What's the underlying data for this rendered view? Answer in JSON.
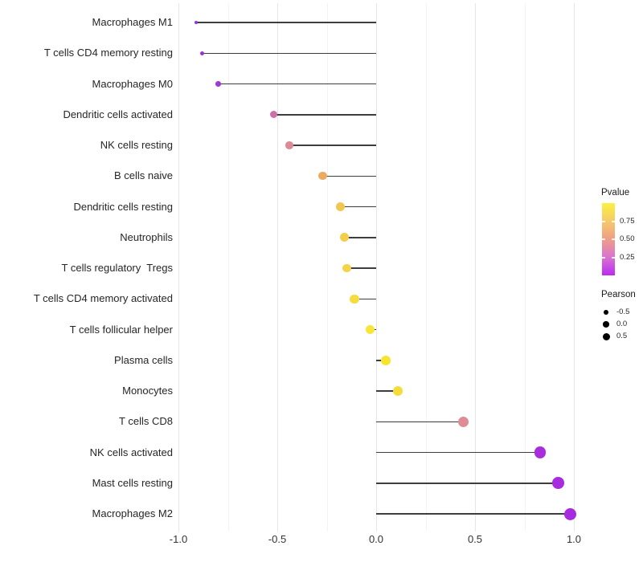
{
  "chart_data": {
    "type": "scatter",
    "subtype": "lollipop",
    "title": "",
    "xlabel": "",
    "ylabel": "",
    "grid": true,
    "xlim": [
      -1.05,
      1.08
    ],
    "x_ticks": [
      {
        "label": "-1.0",
        "value": -1.0
      },
      {
        "label": "-0.5",
        "value": -0.5
      },
      {
        "label": "0.0",
        "value": 0.0
      },
      {
        "label": "0.5",
        "value": 0.5
      },
      {
        "label": "1.0",
        "value": 1.0
      }
    ],
    "minor_grid_values": [
      -0.75,
      -0.25,
      0.25,
      0.75
    ],
    "points": [
      {
        "label": "Macrophages M1",
        "pearson": -0.91,
        "pvalue": 0.07,
        "color": "#9b32cc"
      },
      {
        "label": "T cells CD4 memory resting",
        "pearson": -0.88,
        "pvalue": 0.08,
        "color": "#9d33ce"
      },
      {
        "label": "Macrophages M0",
        "pearson": -0.8,
        "pvalue": 0.1,
        "color": "#a137d4"
      },
      {
        "label": "Dendritic cells activated",
        "pearson": -0.52,
        "pvalue": 0.33,
        "color": "#ce6fac"
      },
      {
        "label": "NK cells resting",
        "pearson": -0.44,
        "pvalue": 0.45,
        "color": "#dc8a93"
      },
      {
        "label": "B cells naive",
        "pearson": -0.27,
        "pvalue": 0.63,
        "color": "#eda95e"
      },
      {
        "label": "Dendritic cells resting",
        "pearson": -0.18,
        "pvalue": 0.73,
        "color": "#f2c750"
      },
      {
        "label": "Neutrophils",
        "pearson": -0.16,
        "pvalue": 0.76,
        "color": "#f3ce4b"
      },
      {
        "label": "T cells regulatory  Tregs",
        "pearson": -0.15,
        "pvalue": 0.78,
        "color": "#f4d346"
      },
      {
        "label": "T cells CD4 memory activated",
        "pearson": -0.11,
        "pvalue": 0.82,
        "color": "#f6dc3e"
      },
      {
        "label": "T cells follicular helper",
        "pearson": -0.03,
        "pvalue": 0.88,
        "color": "#f8e636"
      },
      {
        "label": "Plasma cells",
        "pearson": 0.05,
        "pvalue": 0.9,
        "color": "#f7e42f"
      },
      {
        "label": "Monocytes",
        "pearson": 0.11,
        "pvalue": 0.85,
        "color": "#f4dd39"
      },
      {
        "label": "T cells CD8",
        "pearson": 0.44,
        "pvalue": 0.46,
        "color": "#de8d97"
      },
      {
        "label": "NK cells activated",
        "pearson": 0.83,
        "pvalue": 0.05,
        "color": "#a82edc"
      },
      {
        "label": "Mast cells resting",
        "pearson": 0.92,
        "pvalue": 0.04,
        "color": "#a72cde"
      },
      {
        "label": "Macrophages M2",
        "pearson": 0.98,
        "pvalue": 0.03,
        "color": "#a62bdf"
      }
    ],
    "legend": {
      "pvalue": {
        "title": "Pvalue",
        "range": [
          0,
          1
        ],
        "ticks": [
          {
            "label": "0.75",
            "value": 0.75
          },
          {
            "label": "0.50",
            "value": 0.5
          },
          {
            "label": "0.25",
            "value": 0.25
          }
        ],
        "gradient_top_to_bottom": [
          "#fbf13f",
          "#f6c96b",
          "#ef9e87",
          "#d973d0",
          "#ba2bf2"
        ]
      },
      "pearson": {
        "title": "Pearson",
        "items": [
          {
            "label": "-0.5",
            "value": -0.5
          },
          {
            "label": "0.0",
            "value": 0.0
          },
          {
            "label": "0.5",
            "value": 0.5
          }
        ]
      }
    },
    "stem_color": "#3d3d3d"
  }
}
